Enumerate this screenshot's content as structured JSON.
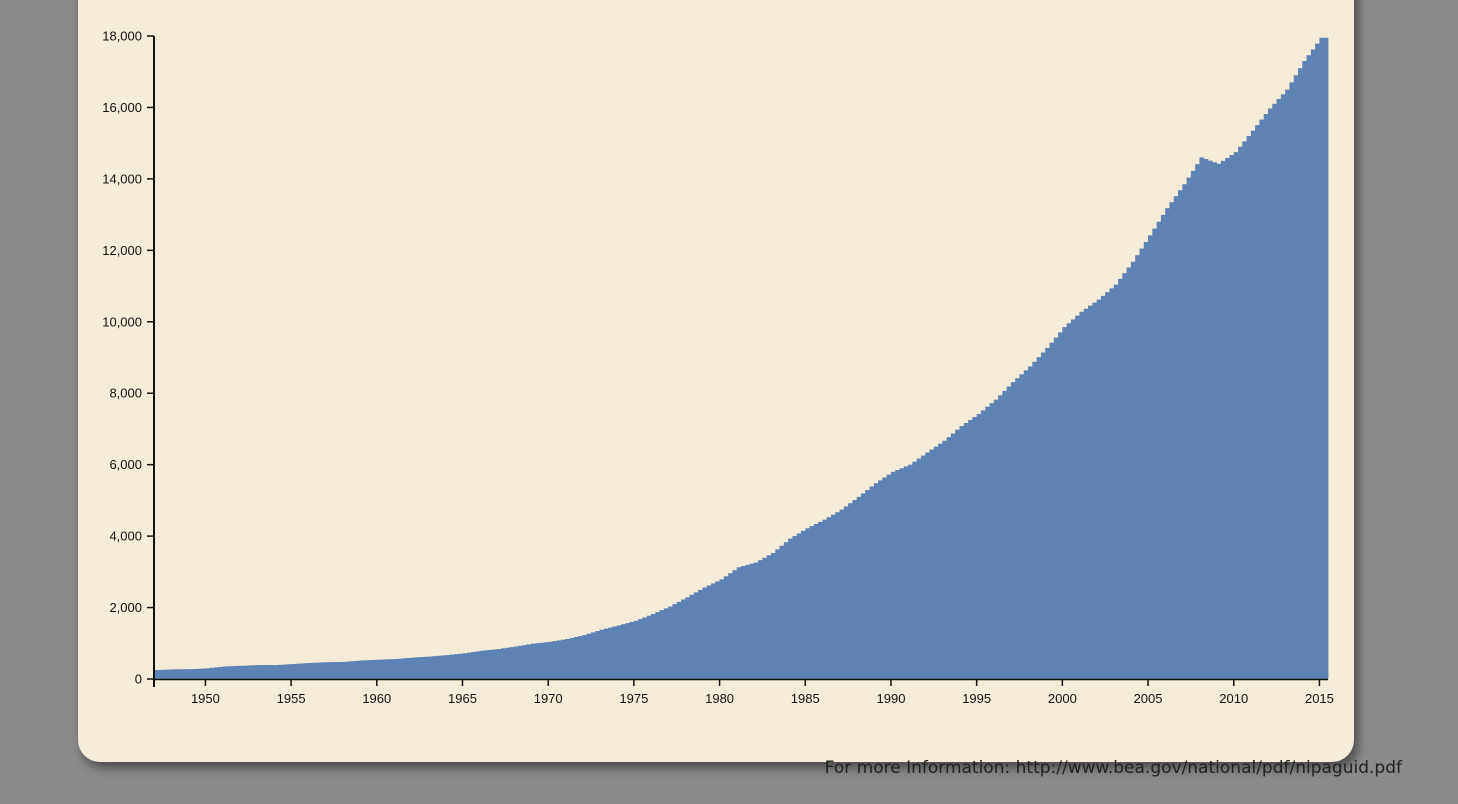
{
  "footer": {
    "prefix": "For more Information: ",
    "link": "http://www.bea.gov/national/pdf/nipaguid.pdf"
  },
  "chart_data": {
    "type": "bar",
    "title": "",
    "xlabel": "",
    "ylabel": "",
    "x_start_year": 1947,
    "x_end_year": 2015.5,
    "x_ticks": [
      "1950",
      "1955",
      "1960",
      "1965",
      "1970",
      "1975",
      "1980",
      "1985",
      "1990",
      "1995",
      "2000",
      "2005",
      "2010",
      "2015"
    ],
    "y_ticks": [
      "0",
      "2,000",
      "4,000",
      "6,000",
      "8,000",
      "10,000",
      "12,000",
      "14,000",
      "16,000",
      "18,000"
    ],
    "ylim": [
      0,
      18000
    ],
    "bar_color": "#5e82b3",
    "grid": false,
    "frequency": "quarterly",
    "annual_values": {
      "1947": 250,
      "1948": 270,
      "1949": 275,
      "1950": 300,
      "1951": 350,
      "1952": 370,
      "1953": 390,
      "1954": 390,
      "1955": 420,
      "1956": 450,
      "1957": 470,
      "1958": 480,
      "1959": 520,
      "1960": 540,
      "1961": 560,
      "1962": 600,
      "1963": 630,
      "1964": 670,
      "1965": 720,
      "1966": 790,
      "1967": 840,
      "1968": 910,
      "1969": 990,
      "1970": 1040,
      "1971": 1120,
      "1972": 1230,
      "1973": 1380,
      "1974": 1500,
      "1975": 1630,
      "1976": 1820,
      "1977": 2030,
      "1978": 2290,
      "1979": 2560,
      "1980": 2790,
      "1981": 3130,
      "1982": 3260,
      "1983": 3530,
      "1984": 3930,
      "1985": 4220,
      "1986": 4460,
      "1987": 4740,
      "1988": 5100,
      "1989": 5480,
      "1990": 5800,
      "1991": 6000,
      "1992": 6340,
      "1993": 6670,
      "1994": 7080,
      "1995": 7420,
      "1996": 7820,
      "1997": 8310,
      "1998": 8750,
      "1999": 9270,
      "2000": 9850,
      "2001": 10280,
      "2002": 10620,
      "2003": 11040,
      "2004": 11680,
      "2005": 12420,
      "2006": 13180,
      "2007": 13850,
      "2008": 14600,
      "2009": 14420,
      "2010": 14750,
      "2011": 15350,
      "2012": 15970,
      "2013": 16500,
      "2014": 17300,
      "2015": 17950
    }
  }
}
